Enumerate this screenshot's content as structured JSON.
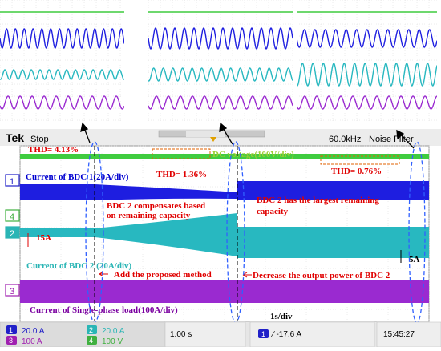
{
  "scope": {
    "brand": "Tek",
    "state": "Stop",
    "sample_rate": "60.0kHz",
    "filter": "Noise Filter",
    "timebase": "1.00 s",
    "trigger": "∕ -17.6 A",
    "trigger_channel": "1",
    "clock": "15:45:27"
  },
  "channels": [
    {
      "id": "1",
      "scale": "20.0 A",
      "color": "#2020c8"
    },
    {
      "id": "2",
      "scale": "20.0 A",
      "color": "#2ab5b5"
    },
    {
      "id": "3",
      "scale": "100 A",
      "color": "#a020b0"
    },
    {
      "id": "4",
      "scale": "100 V",
      "color": "#40b040"
    }
  ],
  "annotations": {
    "dc_voltage": "DC voltage(100V/div)",
    "bdc1_current": "Current of BDC 1(20A/div)",
    "bdc2_current": "Current of BDC 2 (20A/div)",
    "load_current": "Current of Single-phase load(100A/div)",
    "thd1": "THD= 4.13%",
    "thd2": "THD= 1.36%",
    "thd3": "THD= 0.76%",
    "bdc2_compensates": "BDC 2 compensates based\non remaining capacity",
    "bdc2_largest": "BDC 2 has the largest remaining\ncapacity",
    "add_method": "Add the proposed method",
    "decrease_power": "Decrease  the output power of BDC 2",
    "left_current": "15A",
    "right_current": "5A",
    "time_div": "1s/div"
  },
  "colors": {
    "green_trace": "#3fcc3f",
    "blue_trace": "#1e1ee0",
    "cyan_trace": "#28b8c0",
    "purple_trace": "#9a2ad0",
    "annotation_red": "#e00000",
    "annotation_blue": "#0000d0",
    "annotation_purple": "#7a00a0"
  }
}
